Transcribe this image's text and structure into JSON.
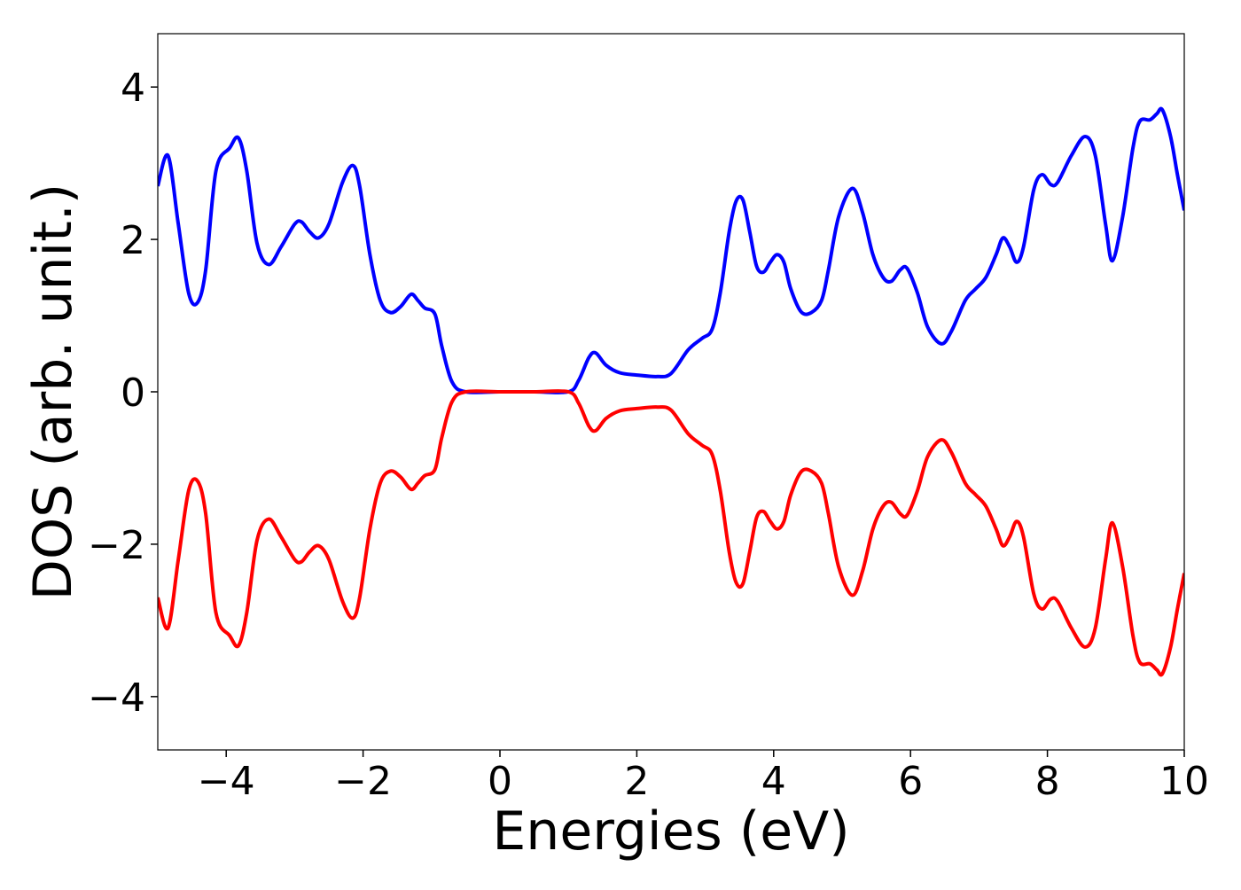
{
  "chart_data": {
    "type": "line",
    "title": "",
    "xlabel": "Energies (eV)",
    "ylabel": "DOS (arb. unit.)",
    "xlim": [
      -5,
      10
    ],
    "ylim": [
      -4.7,
      4.7
    ],
    "x_ticks": [
      {
        "value": -4,
        "label": "−4"
      },
      {
        "value": -2,
        "label": "−2"
      },
      {
        "value": 0,
        "label": "0"
      },
      {
        "value": 2,
        "label": "2"
      },
      {
        "value": 4,
        "label": "4"
      },
      {
        "value": 6,
        "label": "6"
      },
      {
        "value": 8,
        "label": "8"
      },
      {
        "value": 10,
        "label": "10"
      }
    ],
    "y_ticks": [
      {
        "value": -4,
        "label": "−4"
      },
      {
        "value": -2,
        "label": "−2"
      },
      {
        "value": 0,
        "label": "0"
      },
      {
        "value": 2,
        "label": "2"
      },
      {
        "value": 4,
        "label": "4"
      }
    ],
    "grid": false,
    "legend": "none",
    "series": [
      {
        "color": "#0000ff",
        "points": [
          [
            -5.0,
            2.7
          ],
          [
            -4.85,
            3.1
          ],
          [
            -4.7,
            2.2
          ],
          [
            -4.55,
            1.3
          ],
          [
            -4.42,
            1.17
          ],
          [
            -4.3,
            1.6
          ],
          [
            -4.15,
            2.9
          ],
          [
            -3.95,
            3.2
          ],
          [
            -3.82,
            3.33
          ],
          [
            -3.7,
            2.9
          ],
          [
            -3.55,
            1.95
          ],
          [
            -3.38,
            1.67
          ],
          [
            -3.2,
            1.9
          ],
          [
            -3.0,
            2.2
          ],
          [
            -2.9,
            2.23
          ],
          [
            -2.78,
            2.1
          ],
          [
            -2.65,
            2.02
          ],
          [
            -2.5,
            2.2
          ],
          [
            -2.3,
            2.75
          ],
          [
            -2.15,
            2.97
          ],
          [
            -2.05,
            2.7
          ],
          [
            -1.9,
            1.8
          ],
          [
            -1.75,
            1.2
          ],
          [
            -1.6,
            1.04
          ],
          [
            -1.45,
            1.12
          ],
          [
            -1.3,
            1.28
          ],
          [
            -1.2,
            1.2
          ],
          [
            -1.1,
            1.1
          ],
          [
            -0.95,
            1.02
          ],
          [
            -0.85,
            0.6
          ],
          [
            -0.7,
            0.13
          ],
          [
            -0.5,
            0.0
          ],
          [
            0.0,
            0.0
          ],
          [
            0.5,
            0.0
          ],
          [
            1.0,
            0.0
          ],
          [
            1.15,
            0.15
          ],
          [
            1.3,
            0.45
          ],
          [
            1.4,
            0.51
          ],
          [
            1.55,
            0.35
          ],
          [
            1.75,
            0.25
          ],
          [
            2.0,
            0.22
          ],
          [
            2.3,
            0.2
          ],
          [
            2.5,
            0.24
          ],
          [
            2.75,
            0.55
          ],
          [
            2.95,
            0.7
          ],
          [
            3.1,
            0.82
          ],
          [
            3.22,
            1.3
          ],
          [
            3.35,
            2.1
          ],
          [
            3.45,
            2.5
          ],
          [
            3.55,
            2.52
          ],
          [
            3.65,
            2.1
          ],
          [
            3.75,
            1.65
          ],
          [
            3.85,
            1.57
          ],
          [
            3.95,
            1.7
          ],
          [
            4.05,
            1.8
          ],
          [
            4.15,
            1.7
          ],
          [
            4.25,
            1.35
          ],
          [
            4.4,
            1.05
          ],
          [
            4.55,
            1.04
          ],
          [
            4.7,
            1.2
          ],
          [
            4.8,
            1.6
          ],
          [
            4.95,
            2.3
          ],
          [
            5.15,
            2.67
          ],
          [
            5.3,
            2.35
          ],
          [
            5.45,
            1.8
          ],
          [
            5.6,
            1.5
          ],
          [
            5.72,
            1.45
          ],
          [
            5.85,
            1.6
          ],
          [
            5.95,
            1.62
          ],
          [
            6.1,
            1.3
          ],
          [
            6.25,
            0.85
          ],
          [
            6.45,
            0.63
          ],
          [
            6.6,
            0.8
          ],
          [
            6.8,
            1.2
          ],
          [
            6.95,
            1.35
          ],
          [
            7.1,
            1.5
          ],
          [
            7.25,
            1.8
          ],
          [
            7.35,
            2.02
          ],
          [
            7.45,
            1.9
          ],
          [
            7.55,
            1.7
          ],
          [
            7.65,
            1.9
          ],
          [
            7.8,
            2.65
          ],
          [
            7.92,
            2.85
          ],
          [
            8.05,
            2.72
          ],
          [
            8.15,
            2.75
          ],
          [
            8.35,
            3.1
          ],
          [
            8.55,
            3.35
          ],
          [
            8.7,
            3.1
          ],
          [
            8.85,
            2.2
          ],
          [
            8.95,
            1.72
          ],
          [
            9.1,
            2.3
          ],
          [
            9.25,
            3.2
          ],
          [
            9.35,
            3.55
          ],
          [
            9.5,
            3.57
          ],
          [
            9.6,
            3.65
          ],
          [
            9.68,
            3.7
          ],
          [
            9.8,
            3.35
          ],
          [
            9.9,
            2.85
          ],
          [
            10.0,
            2.38
          ]
        ]
      },
      {
        "color": "#ff0000",
        "points": [
          [
            -5.0,
            -2.7
          ],
          [
            -4.85,
            -3.1
          ],
          [
            -4.7,
            -2.2
          ],
          [
            -4.55,
            -1.3
          ],
          [
            -4.42,
            -1.17
          ],
          [
            -4.3,
            -1.6
          ],
          [
            -4.15,
            -2.9
          ],
          [
            -3.95,
            -3.2
          ],
          [
            -3.82,
            -3.33
          ],
          [
            -3.7,
            -2.9
          ],
          [
            -3.55,
            -1.95
          ],
          [
            -3.38,
            -1.67
          ],
          [
            -3.2,
            -1.9
          ],
          [
            -3.0,
            -2.2
          ],
          [
            -2.9,
            -2.23
          ],
          [
            -2.78,
            -2.1
          ],
          [
            -2.65,
            -2.02
          ],
          [
            -2.5,
            -2.2
          ],
          [
            -2.3,
            -2.75
          ],
          [
            -2.15,
            -2.97
          ],
          [
            -2.05,
            -2.7
          ],
          [
            -1.9,
            -1.8
          ],
          [
            -1.75,
            -1.2
          ],
          [
            -1.6,
            -1.04
          ],
          [
            -1.45,
            -1.12
          ],
          [
            -1.3,
            -1.28
          ],
          [
            -1.2,
            -1.2
          ],
          [
            -1.1,
            -1.1
          ],
          [
            -0.95,
            -1.02
          ],
          [
            -0.85,
            -0.6
          ],
          [
            -0.7,
            -0.13
          ],
          [
            -0.5,
            0.0
          ],
          [
            0.0,
            0.0
          ],
          [
            0.5,
            0.0
          ],
          [
            1.0,
            0.0
          ],
          [
            1.15,
            -0.15
          ],
          [
            1.3,
            -0.45
          ],
          [
            1.4,
            -0.51
          ],
          [
            1.55,
            -0.35
          ],
          [
            1.75,
            -0.25
          ],
          [
            2.0,
            -0.22
          ],
          [
            2.3,
            -0.2
          ],
          [
            2.5,
            -0.24
          ],
          [
            2.75,
            -0.55
          ],
          [
            2.95,
            -0.7
          ],
          [
            3.1,
            -0.82
          ],
          [
            3.22,
            -1.3
          ],
          [
            3.35,
            -2.1
          ],
          [
            3.45,
            -2.5
          ],
          [
            3.55,
            -2.52
          ],
          [
            3.65,
            -2.1
          ],
          [
            3.75,
            -1.65
          ],
          [
            3.85,
            -1.57
          ],
          [
            3.95,
            -1.7
          ],
          [
            4.05,
            -1.8
          ],
          [
            4.15,
            -1.7
          ],
          [
            4.25,
            -1.35
          ],
          [
            4.4,
            -1.05
          ],
          [
            4.55,
            -1.04
          ],
          [
            4.7,
            -1.2
          ],
          [
            4.8,
            -1.6
          ],
          [
            4.95,
            -2.3
          ],
          [
            5.15,
            -2.67
          ],
          [
            5.3,
            -2.35
          ],
          [
            5.45,
            -1.8
          ],
          [
            5.6,
            -1.5
          ],
          [
            5.72,
            -1.45
          ],
          [
            5.85,
            -1.6
          ],
          [
            5.95,
            -1.62
          ],
          [
            6.1,
            -1.3
          ],
          [
            6.25,
            -0.85
          ],
          [
            6.45,
            -0.63
          ],
          [
            6.6,
            -0.8
          ],
          [
            6.8,
            -1.2
          ],
          [
            6.95,
            -1.35
          ],
          [
            7.1,
            -1.5
          ],
          [
            7.25,
            -1.8
          ],
          [
            7.35,
            -2.02
          ],
          [
            7.45,
            -1.9
          ],
          [
            7.55,
            -1.7
          ],
          [
            7.65,
            -1.9
          ],
          [
            7.8,
            -2.65
          ],
          [
            7.92,
            -2.85
          ],
          [
            8.05,
            -2.72
          ],
          [
            8.15,
            -2.75
          ],
          [
            8.35,
            -3.1
          ],
          [
            8.55,
            -3.35
          ],
          [
            8.7,
            -3.1
          ],
          [
            8.85,
            -2.2
          ],
          [
            8.95,
            -1.72
          ],
          [
            9.1,
            -2.3
          ],
          [
            9.25,
            -3.2
          ],
          [
            9.35,
            -3.55
          ],
          [
            9.5,
            -3.57
          ],
          [
            9.6,
            -3.65
          ],
          [
            9.68,
            -3.7
          ],
          [
            9.8,
            -3.35
          ],
          [
            9.9,
            -2.85
          ],
          [
            10.0,
            -2.38
          ]
        ]
      }
    ]
  }
}
